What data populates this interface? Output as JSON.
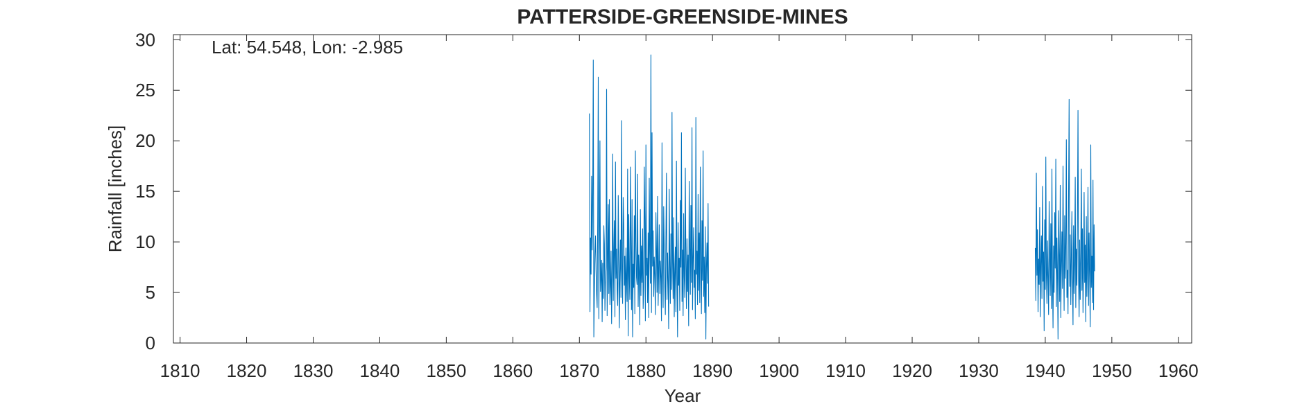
{
  "chart_data": {
    "type": "line",
    "title": "PATTERSIDE-GREENSIDE-MINES",
    "xlabel": "Year",
    "ylabel": "Rainfall [inches]",
    "annotation": "Lat: 54.548, Lon: -2.985",
    "xlim": [
      1809,
      1962
    ],
    "ylim": [
      0,
      30.5
    ],
    "x_ticks": [
      1810,
      1820,
      1830,
      1840,
      1850,
      1860,
      1870,
      1880,
      1890,
      1900,
      1910,
      1920,
      1930,
      1940,
      1950,
      1960
    ],
    "y_ticks": [
      0,
      5,
      10,
      15,
      20,
      25,
      30
    ],
    "grid": false,
    "line_color": "#0072BD",
    "series": [
      {
        "start_year": 1871.5,
        "step_years": 0.0833333,
        "values": [
          22.7,
          3.1,
          10.4,
          6.8,
          16.5,
          9.2,
          14.8,
          28.0,
          0.6,
          5.3,
          8.9,
          10.6,
          7.2,
          4.8,
          3.5,
          12.3,
          26.3,
          2.4,
          9.7,
          20.0,
          5.1,
          6.3,
          8.2,
          2.1,
          7.9,
          4.4,
          11.6,
          9.8,
          3.2,
          6.1,
          7.5,
          25.1,
          2.7,
          8.3,
          13.7,
          4.9,
          14.2,
          3.8,
          5.6,
          9.1,
          1.9,
          7.4,
          18.7,
          4.2,
          8.8,
          12.1,
          2.6,
          17.9,
          6.4,
          9.3,
          5.2,
          3.7,
          14.6,
          8.1,
          1.5,
          6.9,
          10.2,
          4.5,
          22.0,
          7.3,
          3.9,
          14.4,
          11.8,
          5.7,
          8.6,
          2.3,
          9.4,
          6.2,
          4.1,
          17.2,
          0.7,
          12.7,
          6.6,
          4.3,
          17.4,
          9.9,
          3.3,
          14.2,
          0.6,
          7.8,
          5.5,
          12.6,
          2.9,
          19.0,
          10.1,
          6.5,
          5.8,
          16.7,
          3.6,
          8.7,
          7.1,
          1.8,
          13.2,
          4.7,
          9.6,
          6.0,
          11.3,
          3.4,
          5.4,
          17.4,
          12.2,
          2.2,
          19.6,
          6.7,
          8.4,
          4.0,
          10.9,
          2.5,
          16.3,
          9.0,
          5.9,
          28.5,
          3.0,
          20.8,
          7.6,
          11.1,
          4.6,
          8.5,
          6.8,
          2.8,
          12.9,
          9.3,
          5.0,
          14.5,
          3.7,
          7.3,
          11.7,
          4.9,
          8.1,
          6.4,
          2.2,
          19.8,
          7.0,
          3.5,
          13.5,
          9.7,
          5.6,
          2.8,
          10.4,
          16.8,
          4.3,
          8.9,
          6.1,
          1.4,
          15.2,
          7.7,
          3.9,
          10.8,
          5.3,
          22.8,
          8.0,
          4.4,
          12.4,
          2.6,
          6.9,
          9.5,
          3.1,
          18.0,
          6.3,
          0.6,
          11.9,
          5.7,
          8.4,
          3.2,
          14.1,
          7.5,
          20.8,
          4.1,
          9.2,
          2.7,
          12.8,
          6.6,
          4.5,
          17.3,
          7.9,
          3.4,
          10.3,
          5.1,
          8.7,
          1.7,
          16.0,
          9.8,
          4.8,
          13.6,
          6.0,
          21.3,
          3.3,
          8.2,
          11.4,
          5.5,
          7.2,
          2.4,
          22.3,
          6.8,
          9.1,
          3.8,
          14.7,
          5.2,
          10.9,
          4.0,
          17.4,
          7.6,
          2.9,
          12.1,
          6.2,
          19.0,
          4.6,
          8.5,
          3.0,
          11.5,
          0.4,
          7.4,
          9.9,
          5.9,
          13.8,
          3.6
        ]
      },
      {
        "start_year": 1938.5,
        "step_years": 0.0833333,
        "values": [
          9.4,
          4.2,
          16.8,
          6.7,
          11.2,
          3.1,
          8.3,
          5.8,
          13.4,
          2.6,
          7.9,
          10.6,
          4.4,
          15.5,
          6.1,
          9.0,
          1.2,
          12.2,
          5.3,
          18.4,
          7.0,
          3.9,
          10.1,
          6.5,
          2.8,
          14.0,
          8.6,
          4.7,
          11.8,
          3.4,
          17.2,
          6.3,
          1.5,
          9.6,
          5.0,
          12.9,
          7.4,
          18.2,
          3.6,
          10.4,
          6.9,
          0.4,
          13.1,
          8.8,
          4.1,
          15.6,
          2.5,
          7.7,
          11.0,
          5.4,
          17.5,
          8.1,
          3.2,
          12.6,
          6.4,
          9.8,
          20.1,
          4.5,
          7.2,
          2.9,
          14.3,
          24.1,
          5.6,
          10.7,
          3.8,
          8.4,
          13.0,
          6.2,
          1.8,
          11.6,
          4.9,
          7.8,
          16.4,
          3.5,
          9.3,
          5.7,
          12.0,
          23.0,
          6.6,
          2.6,
          10.2,
          4.3,
          8.9,
          17.2,
          5.2,
          11.3,
          3.0,
          7.5,
          14.9,
          6.0,
          9.7,
          2.1,
          12.5,
          4.6,
          8.0,
          15.4,
          3.7,
          10.9,
          6.8,
          1.6,
          19.6,
          5.5,
          8.6,
          4.0,
          16.1,
          3.3,
          11.7,
          7.1
        ]
      }
    ]
  }
}
